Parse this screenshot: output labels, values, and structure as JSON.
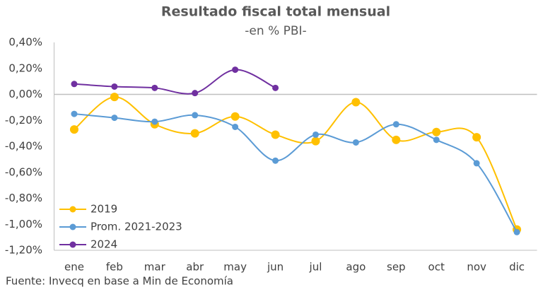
{
  "chart_data": {
    "type": "line",
    "title": "Resultado fiscal total mensual",
    "subtitle": "-en % PBI-",
    "source": "Fuente: Invecq en base a Min de Economía",
    "categories": [
      "ene",
      "feb",
      "mar",
      "abr",
      "may",
      "jun",
      "jul",
      "ago",
      "sep",
      "oct",
      "nov",
      "dic"
    ],
    "series": [
      {
        "name": "2019",
        "color": "#ffc000",
        "values": [
          -0.27,
          -0.02,
          -0.23,
          -0.3,
          -0.17,
          -0.31,
          -0.36,
          -0.06,
          -0.35,
          -0.29,
          -0.33,
          -1.04
        ]
      },
      {
        "name": "Prom. 2021-2023",
        "color": "#5b9bd5",
        "values": [
          -0.15,
          -0.18,
          -0.21,
          -0.16,
          -0.25,
          -0.51,
          -0.31,
          -0.37,
          -0.23,
          -0.35,
          -0.53,
          -1.06
        ]
      },
      {
        "name": "2024",
        "color": "#7030a0",
        "values": [
          0.08,
          0.06,
          0.05,
          0.01,
          0.19,
          0.05,
          null,
          null,
          null,
          null,
          null,
          null
        ]
      }
    ],
    "ylim": [
      -1.2,
      0.4
    ],
    "yticks": [
      {
        "value": 0.4,
        "label": "0,40%"
      },
      {
        "value": 0.2,
        "label": "0,20%"
      },
      {
        "value": 0,
        "label": "0,00%"
      },
      {
        "value": -0.2,
        "label": "-0,20%"
      },
      {
        "value": -0.4,
        "label": "-0,40%"
      },
      {
        "value": -0.6,
        "label": "-0,60%"
      },
      {
        "value": -0.8,
        "label": "-0,80%"
      },
      {
        "value": -1.0,
        "label": "-1,00%"
      },
      {
        "value": -1.2,
        "label": "-1,20%"
      }
    ],
    "legend": "bottom-left"
  }
}
